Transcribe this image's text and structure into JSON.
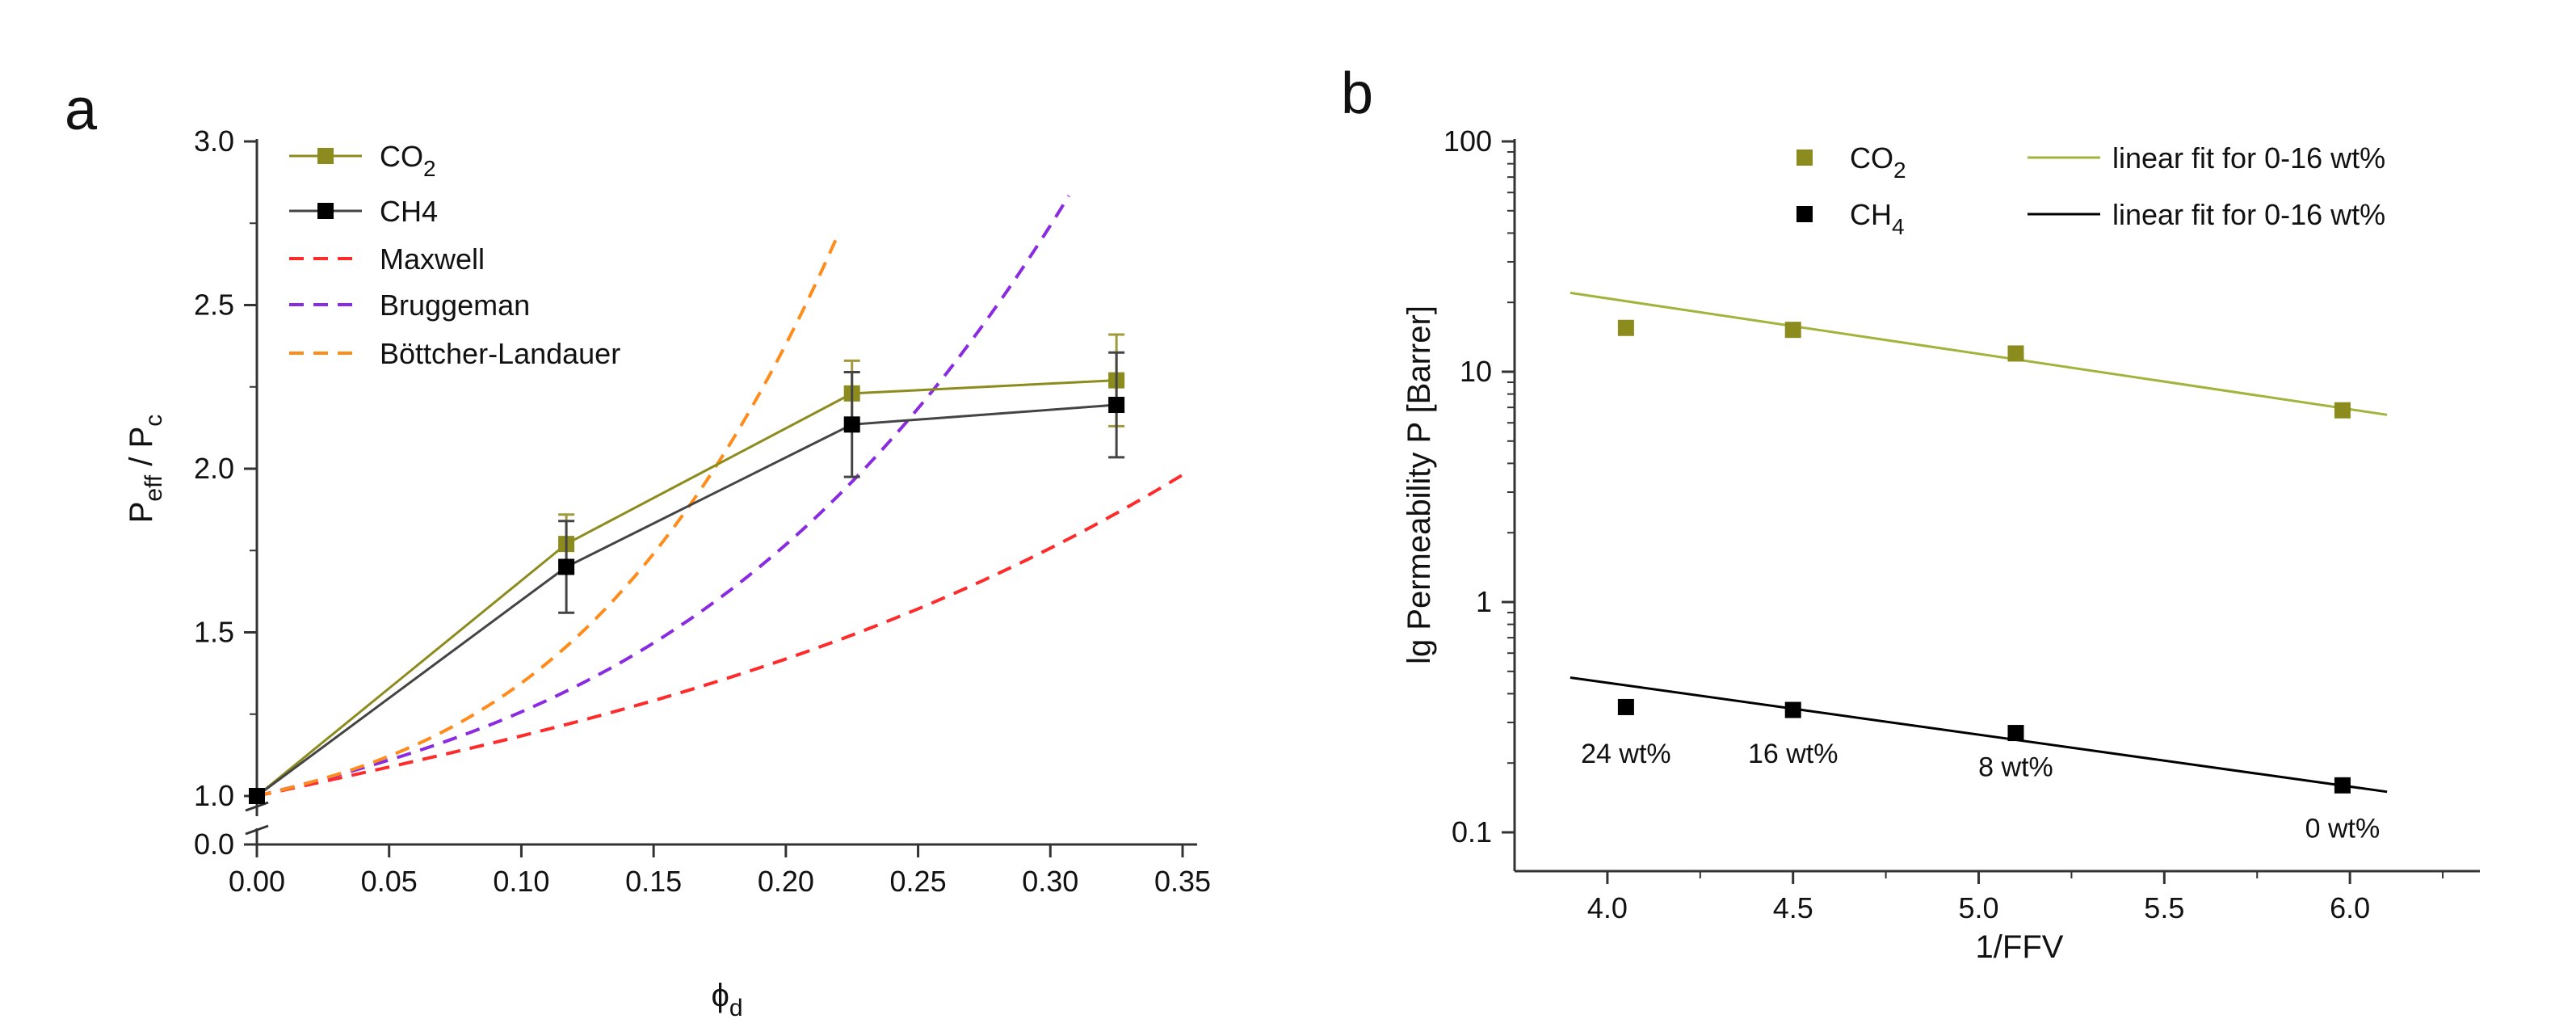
{
  "colors": {
    "co2": "#8c8c1e",
    "ch4": "#000000",
    "co2_fit": "#a4b33c",
    "maxwell": "#ff2a2a",
    "bruggeman": "#8a2be2",
    "bottcher": "#ff8c1a",
    "axis": "#333333"
  },
  "chart_data": [
    {
      "panel": "a",
      "type": "line",
      "xlabel": "ϕ",
      "xlabel_sub": "d",
      "ylabel": "P",
      "ylabel_sub1": "eff",
      "ylabel_mid": " / P",
      "ylabel_sub2": "c",
      "xlim": [
        0.0,
        0.35
      ],
      "ylim": [
        0.0,
        3.0
      ],
      "axis_break": [
        0.0,
        1.0
      ],
      "x_ticks": [
        "0.00",
        "0.05",
        "0.10",
        "0.15",
        "0.20",
        "0.25",
        "0.30",
        "0.35"
      ],
      "y_ticks": [
        "0.0",
        "1.0",
        "1.5",
        "2.0",
        "2.5",
        "3.0"
      ],
      "legend_position": "top-left",
      "legend": [
        {
          "key": "co2",
          "label": "CO",
          "sub": "2"
        },
        {
          "key": "ch4",
          "label": "CH4",
          "sub": ""
        },
        {
          "key": "maxwell",
          "label": "Maxwell",
          "sub": ""
        },
        {
          "key": "bruggeman",
          "label": "Bruggeman",
          "sub": ""
        },
        {
          "key": "bottcher",
          "label": "Böttcher-Landauer",
          "sub": ""
        }
      ],
      "series": [
        {
          "name": "CO2",
          "key": "co2",
          "x": [
            0.0,
            0.117,
            0.225,
            0.325
          ],
          "y": [
            1.0,
            1.77,
            2.23,
            2.27
          ],
          "yerr": [
            0.0,
            0.09,
            0.1,
            0.14
          ]
        },
        {
          "name": "CH4",
          "key": "ch4",
          "x": [
            0.0,
            0.117,
            0.225,
            0.325
          ],
          "y": [
            1.0,
            1.7,
            2.135,
            2.195
          ],
          "yerr": [
            0.0,
            0.14,
            0.16,
            0.16
          ]
        }
      ],
      "models": [
        {
          "name": "Maxwell",
          "key": "maxwell",
          "x_end": 0.35,
          "k": 1.755
        },
        {
          "name": "Bruggeman",
          "key": "bruggeman",
          "x_end": 0.307,
          "k": 2.37,
          "c": 2.6
        },
        {
          "name": "Böttcher-Landauer",
          "key": "bottcher",
          "x_end": 0.22,
          "k": 2.35,
          "c": 6.2
        }
      ]
    },
    {
      "panel": "b",
      "type": "scatter",
      "xlabel": "1/FFV",
      "ylabel": "lg Permeability P [Barrer]",
      "xlim": [
        3.75,
        6.35
      ],
      "ylim_log": [
        0.07,
        100
      ],
      "x_ticks": [
        "4.0",
        "4.5",
        "5.0",
        "5.5",
        "6.0"
      ],
      "y_ticks": [
        "0.1",
        "1",
        "10",
        "100"
      ],
      "legend_position": "top",
      "legend": [
        {
          "key": "co2",
          "label": "CO",
          "sub": "2",
          "fit_label": "linear fit for 0-16 wt%"
        },
        {
          "key": "ch4",
          "label": "CH",
          "sub": "4",
          "fit_label": "linear fit for 0-16 wt%"
        }
      ],
      "series": [
        {
          "name": "CO2",
          "key": "co2",
          "x": [
            4.05,
            4.5,
            5.1,
            5.98
          ],
          "y": [
            15.5,
            15.2,
            12.0,
            6.8
          ]
        },
        {
          "name": "CH4",
          "key": "ch4",
          "x": [
            4.05,
            4.5,
            5.1,
            5.98
          ],
          "y": [
            0.35,
            0.34,
            0.27,
            0.16
          ]
        }
      ],
      "fits": [
        {
          "key": "co2_fit",
          "x": [
            3.9,
            6.1
          ],
          "y": [
            22.0,
            6.5
          ]
        },
        {
          "key": "ch4",
          "x": [
            3.9,
            6.1
          ],
          "y": [
            0.47,
            0.15
          ]
        }
      ],
      "annotations": [
        {
          "text": "24 wt%",
          "x": 4.05,
          "y": 0.2
        },
        {
          "text": "16 wt%",
          "x": 4.5,
          "y": 0.2
        },
        {
          "text": "8 wt%",
          "x": 5.1,
          "y": 0.175
        },
        {
          "text": "0 wt%",
          "x": 5.98,
          "y": 0.095
        }
      ]
    }
  ]
}
